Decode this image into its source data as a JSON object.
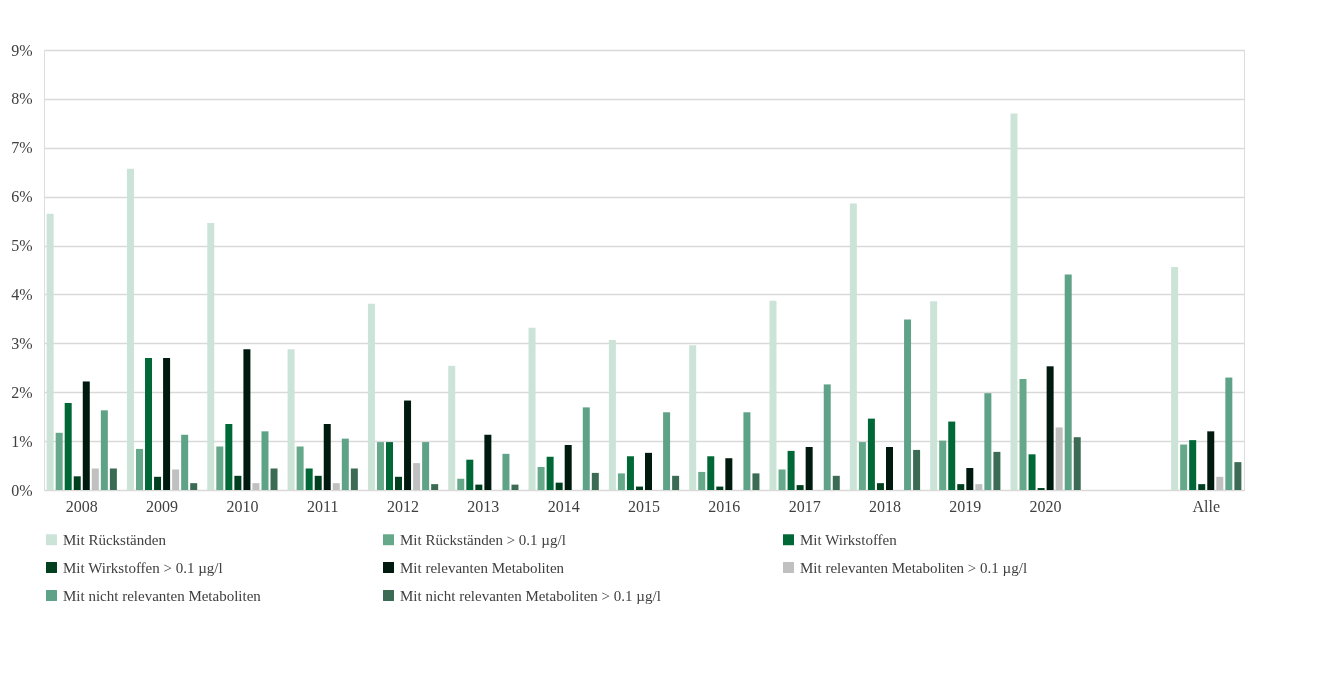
{
  "chart_data": {
    "type": "bar",
    "categories": [
      "2008",
      "2009",
      "2010",
      "2011",
      "2012",
      "2013",
      "2014",
      "2015",
      "2016",
      "2017",
      "2018",
      "2019",
      "2020",
      null,
      "Alle"
    ],
    "series": [
      {
        "name": "Mit Rückständen",
        "color": "#cce3d8",
        "values": [
          5.65,
          6.57,
          5.46,
          2.88,
          3.81,
          2.54,
          3.32,
          3.07,
          2.96,
          3.87,
          5.86,
          3.86,
          7.7,
          null,
          4.56
        ]
      },
      {
        "name": "Mit Rückständen > 0.1 µg/l",
        "color": "#66a88a",
        "values": [
          1.17,
          0.84,
          0.89,
          0.89,
          0.98,
          0.23,
          0.47,
          0.34,
          0.37,
          0.42,
          0.98,
          1.01,
          2.27,
          null,
          0.93
        ]
      },
      {
        "name": "Mit Wirkstoffen",
        "color": "#006837",
        "values": [
          1.78,
          2.7,
          1.35,
          0.44,
          0.98,
          0.62,
          0.68,
          0.69,
          0.69,
          0.8,
          1.46,
          1.4,
          0.73,
          null,
          1.02
        ]
      },
      {
        "name": "Mit Wirkstoffen > 0.1 µg/l",
        "color": "#00401f",
        "values": [
          0.28,
          0.27,
          0.29,
          0.29,
          0.27,
          0.11,
          0.15,
          0.07,
          0.07,
          0.1,
          0.14,
          0.12,
          0.04,
          null,
          0.12
        ]
      },
      {
        "name": "Mit relevanten Metaboliten",
        "color": "#001a0f",
        "values": [
          2.22,
          2.7,
          2.88,
          1.35,
          1.83,
          1.13,
          0.92,
          0.76,
          0.65,
          0.88,
          0.88,
          0.45,
          2.53,
          null,
          1.2
        ]
      },
      {
        "name": "Mit relevanten Metaboliten > 0.1 µg/l",
        "color": "#c0c0c0",
        "values": [
          0.44,
          0.42,
          0.14,
          0.14,
          0.55,
          0,
          null,
          null,
          0,
          0,
          0,
          0.12,
          1.28,
          null,
          0.27
        ]
      },
      {
        "name": "Mit nicht relevanten Metaboliten",
        "color": "#5ea387",
        "values": [
          1.63,
          1.13,
          1.2,
          1.05,
          0.98,
          0.74,
          1.69,
          1.59,
          1.59,
          2.16,
          3.49,
          1.98,
          4.41,
          null,
          2.3
        ]
      },
      {
        "name": "Mit nicht relevanten Metaboliten > 0.1 µg/l",
        "color": "#3c6b55",
        "values": [
          0.44,
          0.14,
          0.44,
          0.44,
          0.12,
          0.11,
          0.35,
          0.29,
          0.34,
          0.29,
          0.82,
          0.78,
          1.08,
          null,
          0.57
        ]
      }
    ],
    "ylim": [
      0,
      9
    ],
    "yticks": [
      {
        "value": 0,
        "label": "0%"
      },
      {
        "value": 1,
        "label": "1%"
      },
      {
        "value": 2,
        "label": "2%"
      },
      {
        "value": 3,
        "label": "3%"
      },
      {
        "value": 4,
        "label": "4%"
      },
      {
        "value": 5,
        "label": "5%"
      },
      {
        "value": 6,
        "label": "6%"
      },
      {
        "value": 7,
        "label": "7%"
      },
      {
        "value": 8,
        "label": "8%"
      },
      {
        "value": 9,
        "label": "9%"
      }
    ],
    "grid": "y",
    "legend": "bottom"
  }
}
